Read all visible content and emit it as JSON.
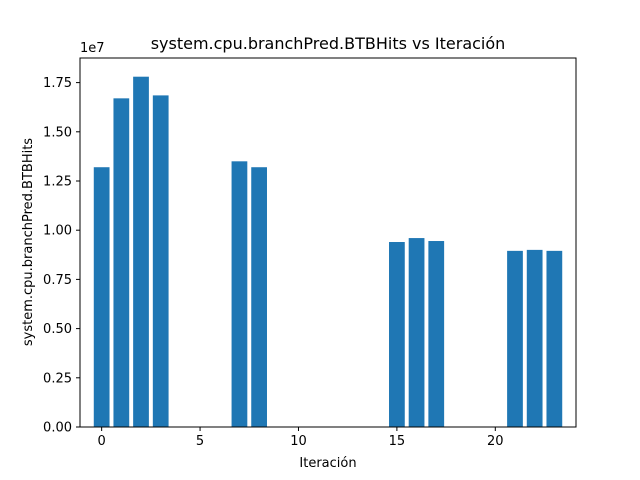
{
  "chart_data": {
    "type": "bar",
    "title": "system.cpu.branchPred.BTBHits vs Iteración",
    "xlabel": "Iteración",
    "ylabel": "system.cpu.branchPred.BTBHits",
    "y_offset_label": "1e7",
    "xlim": [
      -1.1,
      24.1
    ],
    "ylim": [
      0,
      18750000
    ],
    "x_ticks": [
      0,
      5,
      10,
      15,
      20
    ],
    "y_ticks": [
      0,
      2500000,
      5000000,
      7500000,
      10000000,
      12500000,
      15000000,
      17500000
    ],
    "x_tick_labels": [
      "0",
      "5",
      "10",
      "15",
      "20"
    ],
    "y_tick_labels": [
      "0.00",
      "0.25",
      "0.50",
      "0.75",
      "1.00",
      "1.25",
      "1.50",
      "1.75"
    ],
    "bar_color": "#1f77b4",
    "grid": false,
    "x": [
      0,
      1,
      2,
      3,
      7,
      8,
      15,
      16,
      17,
      21,
      22,
      23
    ],
    "values": [
      13200000,
      16700000,
      17800000,
      16850000,
      13500000,
      13200000,
      9400000,
      9600000,
      9450000,
      8950000,
      9000000,
      8950000
    ]
  }
}
